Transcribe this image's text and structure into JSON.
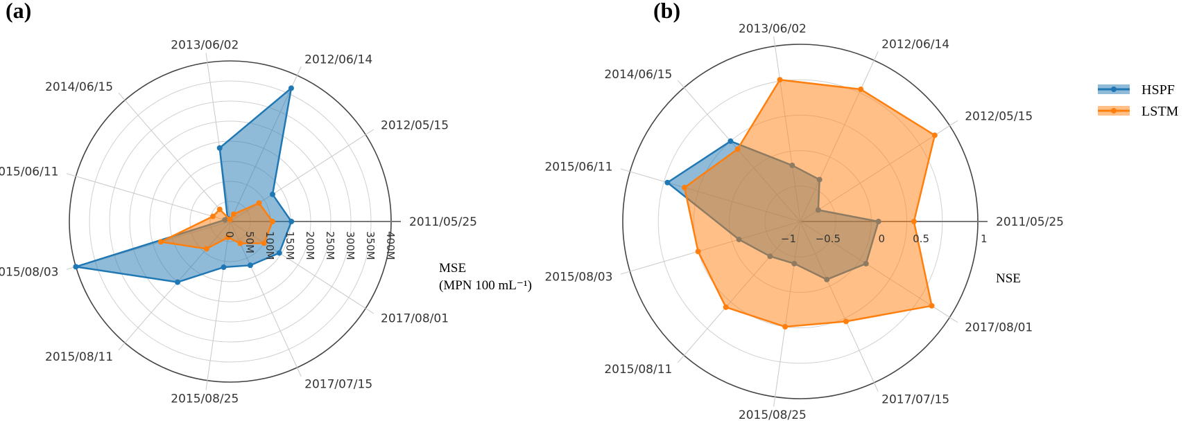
{
  "chart_data": [
    {
      "panel": "(a)",
      "type": "radar",
      "categories": [
        "2011/05/25",
        "2012/05/15",
        "2012/06/14",
        "2013/06/02",
        "2014/06/15",
        "2015/06/11",
        "2015/08/03",
        "2015/08/11",
        "2015/08/25",
        "2017/07/15",
        "2017/08/01"
      ],
      "radial_ticks": [
        "0",
        "50M",
        "100M",
        "150M",
        "200M",
        "250M",
        "300M",
        "350M",
        "400M"
      ],
      "radial_range": [
        0,
        400
      ],
      "radial_title_line1": "MSE",
      "radial_title_line2": "(MPN 100 mL⁻¹)",
      "series": [
        {
          "name": "HSPF",
          "color": "#1f77b4",
          "values": [
            152,
            125,
            365,
            185,
            10,
            14,
            400,
            200,
            115,
            120,
            145
          ]
        },
        {
          "name": "LSTM",
          "color": "#ff7f0e",
          "values": [
            105,
            85,
            20,
            5,
            40,
            45,
            180,
            90,
            40,
            60,
            100
          ]
        }
      ]
    },
    {
      "panel": "(b)",
      "type": "radar",
      "categories": [
        "2011/05/25",
        "2012/05/15",
        "2012/06/14",
        "2013/06/02",
        "2014/06/15",
        "2015/06/11",
        "2015/08/03",
        "2015/08/11",
        "2015/08/25",
        "2017/07/15",
        "2017/08/01"
      ],
      "radial_ticks": [
        "−1",
        "−0.5",
        "0",
        "0.5",
        "1"
      ],
      "radial_range": [
        -1.5,
        1
      ],
      "radial_title": "NSE",
      "series": [
        {
          "name": "HSPF",
          "color": "#1f77b4",
          "values": [
            -0.4,
            -1.2,
            -0.85,
            -0.7,
            0.0,
            0.45,
            -0.6,
            -0.85,
            -0.9,
            -0.6,
            -0.4
          ]
        },
        {
          "name": "LSTM",
          "color": "#ff7f0e",
          "values": [
            0.1,
            0.75,
            0.55,
            0.52,
            -0.15,
            0.2,
            0.0,
            0.1,
            0.0,
            0.05,
            0.7
          ]
        }
      ]
    }
  ],
  "legend": [
    {
      "name": "HSPF",
      "color": "#1f77b4"
    },
    {
      "name": "LSTM",
      "color": "#ff7f0e"
    }
  ]
}
